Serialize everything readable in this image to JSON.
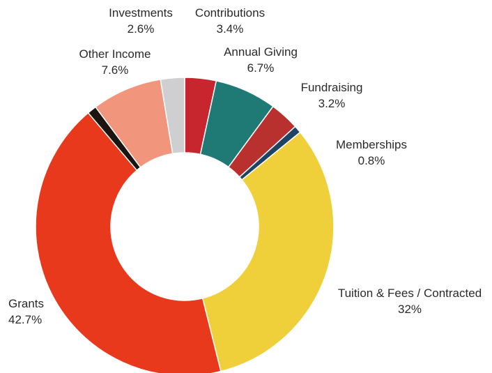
{
  "chart_data": {
    "type": "pie",
    "title": "",
    "slices": [
      {
        "label": "Contributions",
        "value": 3.4,
        "display": "3.4%",
        "color": "#c8262f"
      },
      {
        "label": "Annual Giving",
        "value": 6.7,
        "display": "6.7%",
        "color": "#1f7a76"
      },
      {
        "label": "Fundraising",
        "value": 3.2,
        "display": "3.2%",
        "color": "#b8312f"
      },
      {
        "label": "Memberships",
        "value": 0.8,
        "display": "0.8%",
        "color": "#1f4463"
      },
      {
        "label": "Tuition & Fees / Contracted",
        "value": 32,
        "display": "32%",
        "color": "#f0d03a"
      },
      {
        "label": "Grants",
        "value": 42.7,
        "display": "42.7%",
        "color": "#e8391d"
      },
      {
        "label": "",
        "value": 1.0,
        "display": "",
        "color": "#1c1411"
      },
      {
        "label": "Other Income",
        "value": 7.6,
        "display": "7.6%",
        "color": "#f2957d"
      },
      {
        "label": "Investments",
        "value": 2.6,
        "display": "2.6%",
        "color": "#cfcfd1"
      }
    ]
  }
}
